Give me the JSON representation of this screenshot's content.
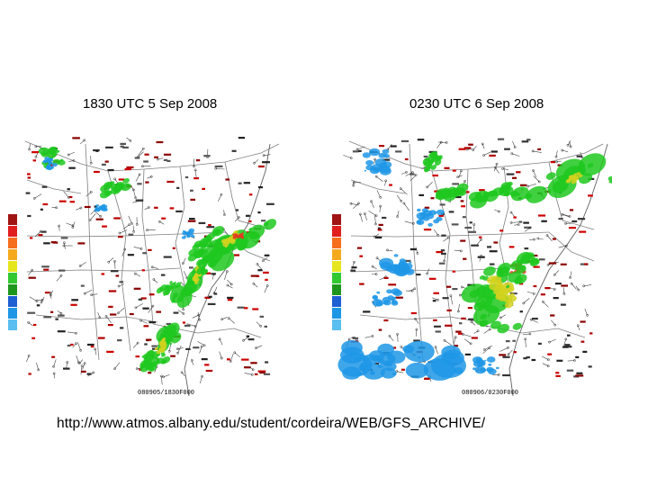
{
  "panels": [
    {
      "title": "1830 UTC 5 Sep 2008",
      "timestamp": "080905/1830F000",
      "cells": [
        [
          "#1ec81e",
          266,
          265,
          40,
          10,
          -35
        ],
        [
          "#1ec81e",
          228,
          272,
          20,
          7,
          -30
        ],
        [
          "#d2d21e",
          258,
          265,
          10,
          5,
          -30
        ],
        [
          "#e13c1e",
          265,
          262,
          5,
          3,
          0
        ],
        [
          "#1ec81e",
          214,
          310,
          32,
          7,
          -55
        ],
        [
          "#d2d21e",
          220,
          304,
          9,
          4,
          -55
        ],
        [
          "#1ec81e",
          235,
          290,
          16,
          6,
          -45
        ],
        [
          "#1ec81e",
          178,
          388,
          26,
          8,
          -50
        ],
        [
          "#1ec81e",
          172,
          400,
          12,
          10,
          -30
        ],
        [
          "#d2d21e",
          180,
          385,
          7,
          4,
          -50
        ],
        [
          "#1ec81e",
          60,
          175,
          14,
          10,
          0
        ],
        [
          "#1e96e6",
          55,
          182,
          6,
          6,
          0
        ],
        [
          "#1ec81e",
          128,
          208,
          14,
          6,
          -20
        ],
        [
          "#1e96e6",
          112,
          232,
          6,
          4,
          0
        ],
        [
          "#1e96e6",
          210,
          260,
          6,
          4,
          0
        ],
        [
          "#1ec81e",
          188,
          320,
          10,
          5,
          -40
        ]
      ],
      "palette": [
        "#a01414",
        "#e11e1e",
        "#f56e1e",
        "#f5aa1e",
        "#e6e61e",
        "#32c832",
        "#1e961e",
        "#1e5fd2",
        "#1e96e6",
        "#5abef0"
      ]
    },
    {
      "title": "0230 UTC 6 Sep 2008",
      "timestamp": "080906/0230F000",
      "cells": [
        [
          "#1ec81e",
          546,
          335,
          20,
          40,
          -20
        ],
        [
          "#d2d21e",
          560,
          325,
          8,
          20,
          -25
        ],
        [
          "#e13c1e",
          575,
          298,
          8,
          5,
          0
        ],
        [
          "#1ec81e",
          578,
          300,
          22,
          12,
          -30
        ],
        [
          "#1ec81e",
          620,
          205,
          46,
          12,
          -25
        ],
        [
          "#d2d21e",
          638,
          198,
          8,
          4,
          -25
        ],
        [
          "#1ec81e",
          480,
          180,
          12,
          6,
          -40
        ],
        [
          "#1e96e6",
          420,
          180,
          16,
          12,
          0
        ],
        [
          "#1e96e6",
          438,
          292,
          20,
          10,
          0
        ],
        [
          "#1e96e6",
          450,
          400,
          60,
          15,
          0
        ],
        [
          "#1e96e6",
          420,
          405,
          22,
          12,
          0
        ],
        [
          "#1e96e6",
          540,
          405,
          14,
          8,
          0
        ],
        [
          "#1ec81e",
          548,
          215,
          24,
          7,
          -15
        ],
        [
          "#1e96e6",
          478,
          242,
          14,
          9,
          0
        ],
        [
          "#1ec81e",
          690,
          200,
          12,
          6,
          0
        ],
        [
          "#1e96e6",
          428,
          330,
          14,
          8,
          0
        ],
        [
          "#1ec81e",
          502,
          214,
          18,
          5,
          -20
        ]
      ],
      "palette": [
        "#a01414",
        "#e11e1e",
        "#f56e1e",
        "#f5aa1e",
        "#e6e61e",
        "#32c832",
        "#1e961e",
        "#1e5fd2",
        "#1e96e6",
        "#5abef0"
      ]
    }
  ],
  "source_url": "http://www.atmos.albany.edu/student/cordeira/WEB/GFS_ARCHIVE/"
}
